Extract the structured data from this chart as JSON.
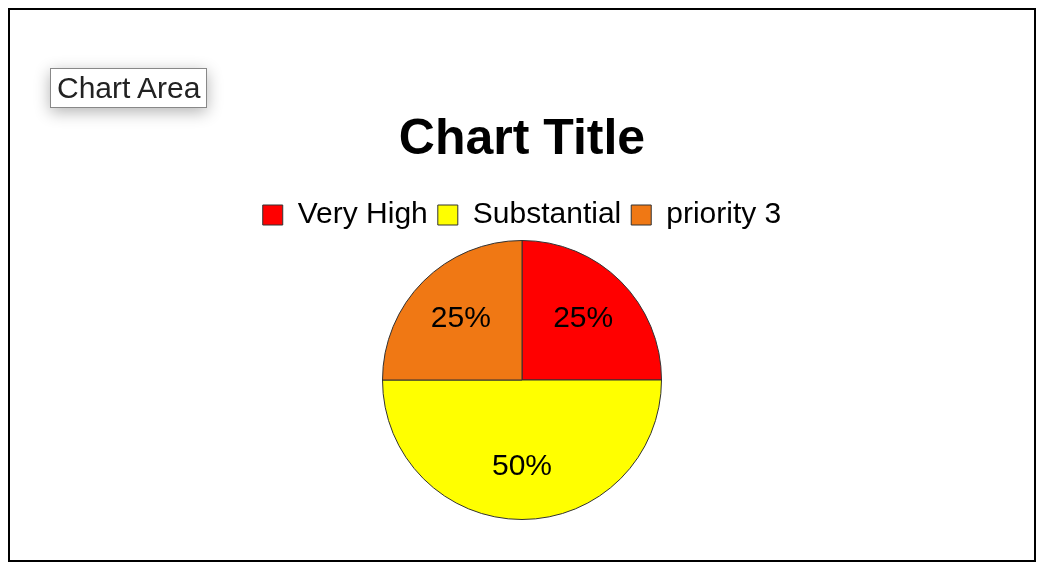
{
  "chart_data": {
    "type": "pie",
    "title": "Chart Title",
    "categories": [
      "Very High",
      "Substantial",
      "priority 3"
    ],
    "values": [
      25,
      50,
      25
    ],
    "colors": [
      "#ff0000",
      "#ffff00",
      "#f07814"
    ],
    "value_labels": [
      "25%",
      "50%",
      "25%"
    ],
    "legend": "top",
    "annotations": [
      "Chart Area"
    ]
  }
}
